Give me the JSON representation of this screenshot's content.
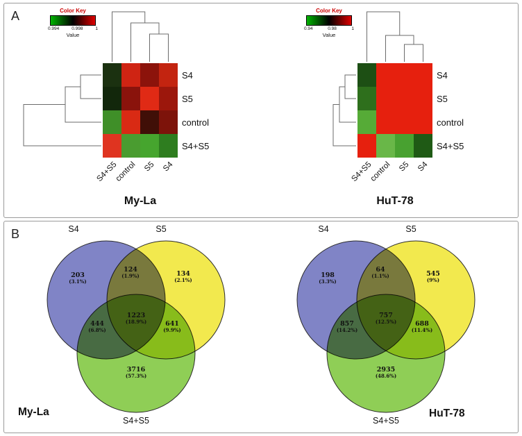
{
  "panels": {
    "a_label": "A",
    "b_label": "B"
  },
  "chart_data": [
    {
      "type": "heatmap",
      "title": "My-La",
      "color_key": {
        "title": "Color Key",
        "axis_label": "Value",
        "ticks": [
          "0.994",
          "0.998",
          "1"
        ],
        "gradient": [
          "#00b400",
          "#000000",
          "#e00000"
        ]
      },
      "rows": [
        "S4",
        "S5",
        "control",
        "S4+S5"
      ],
      "cols": [
        "S4+S5",
        "control",
        "S5",
        "S4"
      ],
      "cell_colors": [
        [
          "#1b3110",
          "#cf2413",
          "#8c130b",
          "#c32410"
        ],
        [
          "#12270b",
          "#8a130c",
          "#e02a15",
          "#9c170c"
        ],
        [
          "#3f8f28",
          "#d92a14",
          "#400f07",
          "#7d130a"
        ],
        [
          "#df3420",
          "#4a9c30",
          "#46a52e",
          "#2e7d1f"
        ]
      ]
    },
    {
      "type": "heatmap",
      "title": "HuT-78",
      "color_key": {
        "title": "Color Key",
        "axis_label": "Value",
        "ticks": [
          "0.94",
          "0.98",
          "1"
        ],
        "gradient": [
          "#00b400",
          "#000000",
          "#e00000"
        ]
      },
      "rows": [
        "S4",
        "S5",
        "control",
        "S4+S5"
      ],
      "cols": [
        "S4+S5",
        "control",
        "S5",
        "S4"
      ],
      "cell_colors": [
        [
          "#1d4f14",
          "#e6200e",
          "#e6200e",
          "#e6200e"
        ],
        [
          "#2e6f1c",
          "#e6200e",
          "#e6200e",
          "#e6200e"
        ],
        [
          "#56ab37",
          "#e6200e",
          "#e6200e",
          "#e6200e"
        ],
        [
          "#e6200e",
          "#69b748",
          "#48a130",
          "#1f5a15"
        ]
      ]
    },
    {
      "type": "venn",
      "title": "My-La",
      "set_labels": {
        "s4": "S4",
        "s5": "S5",
        "s4s5": "S4+S5"
      },
      "colors": {
        "s4": "#8084c6",
        "s5": "#f2e94e",
        "s4s5": "#8fce56"
      },
      "regions": [
        {
          "name": "S4 only",
          "count": "203",
          "pct": "(3.1%)"
        },
        {
          "name": "S4 and S5",
          "count": "124",
          "pct": "(1.9%)"
        },
        {
          "name": "S5 only",
          "count": "134",
          "pct": "(2.1%)"
        },
        {
          "name": "S4 and S4+S5",
          "count": "444",
          "pct": "(6.8%)"
        },
        {
          "name": "S4 and S5 and S4+S5",
          "count": "1223",
          "pct": "(18.9%)"
        },
        {
          "name": "S5 and S4+S5",
          "count": "641",
          "pct": "(9.9%)"
        },
        {
          "name": "S4+S5 only",
          "count": "3716",
          "pct": "(57.3%)"
        }
      ]
    },
    {
      "type": "venn",
      "title": "HuT-78",
      "set_labels": {
        "s4": "S4",
        "s5": "S5",
        "s4s5": "S4+S5"
      },
      "colors": {
        "s4": "#8084c6",
        "s5": "#f2e94e",
        "s4s5": "#8fce56"
      },
      "regions": [
        {
          "name": "S4 only",
          "count": "198",
          "pct": "(3.3%)"
        },
        {
          "name": "S4 and S5",
          "count": "64",
          "pct": "(1.1%)"
        },
        {
          "name": "S5 only",
          "count": "545",
          "pct": "(9%)"
        },
        {
          "name": "S4 and S4+S5",
          "count": "857",
          "pct": "(14.2%)"
        },
        {
          "name": "S4 and S5 and S4+S5",
          "count": "757",
          "pct": "(12.5%)"
        },
        {
          "name": "S5 and S4+S5",
          "count": "688",
          "pct": "(11.4%)"
        },
        {
          "name": "S4+S5 only",
          "count": "2935",
          "pct": "(48.6%)"
        }
      ]
    }
  ]
}
